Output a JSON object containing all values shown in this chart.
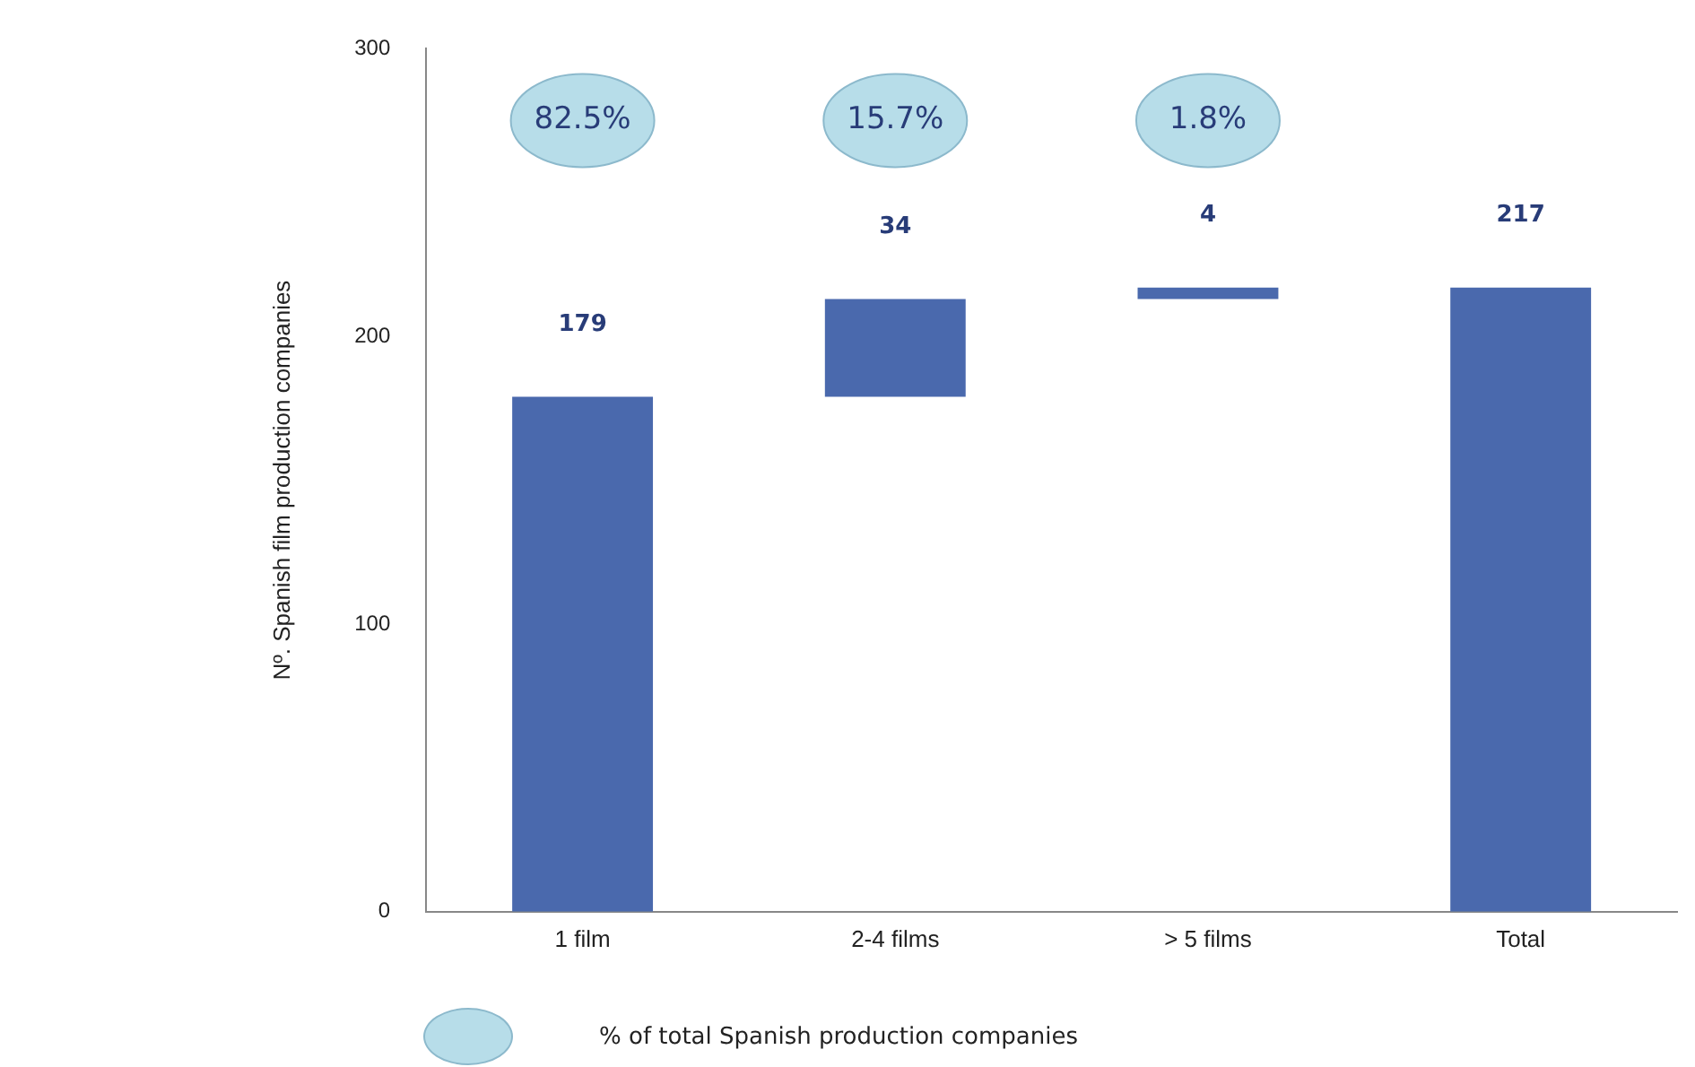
{
  "chart_data": {
    "type": "bar",
    "ylabel": "Nº. Spanish film production companies",
    "categories": [
      "1 film",
      "2-4 films",
      "> 5 films",
      "Total"
    ],
    "values": [
      179,
      34,
      4,
      217
    ],
    "base": [
      0,
      179,
      213,
      0
    ],
    "color": "#4a69ad",
    "ylim": [
      0,
      300
    ],
    "yticks": [
      0,
      100,
      200,
      300
    ],
    "grid": false,
    "data_labels": true,
    "annotations": [
      "82.5%",
      "15.7%",
      "1.8%",
      "% of total Spanish production companies"
    ]
  }
}
